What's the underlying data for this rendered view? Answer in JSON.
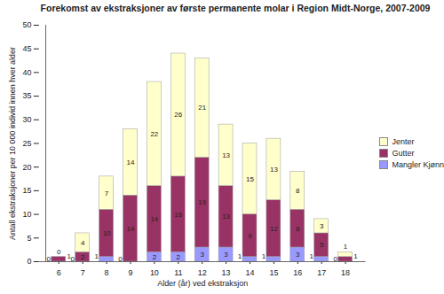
{
  "chart_data": {
    "type": "bar",
    "title": "Forekomst av ekstraksjoner av første permanente molar i Region Midt-Norge, 2007-2009",
    "x_label": "Alder (år) ved ekstraksjon",
    "y_label": "Antall ekstraksjoner per 10 000 individ innen hver alder",
    "categories": [
      6,
      7,
      8,
      9,
      10,
      11,
      12,
      13,
      14,
      15,
      16,
      17,
      18
    ],
    "series": [
      {
        "name": "Mangler Kjønn",
        "color": "#9999ff",
        "values": [
          0,
          0,
          1,
          0,
          2,
          2,
          3,
          3,
          1,
          1,
          3,
          1,
          0
        ]
      },
      {
        "name": "Gutter",
        "color": "#993366",
        "values": [
          1,
          2,
          10,
          14,
          14,
          16,
          19,
          13,
          9,
          12,
          8,
          5,
          1
        ]
      },
      {
        "name": "Jenter",
        "color": "#ffffcc",
        "values": [
          0,
          4,
          7,
          14,
          22,
          26,
          21,
          13,
          15,
          13,
          8,
          3,
          1
        ]
      }
    ],
    "stacked": true,
    "data_labels": true,
    "ylim": [
      0,
      50
    ],
    "yticks": [
      0,
      5,
      10,
      15,
      20,
      25,
      30,
      35,
      40,
      45,
      50
    ],
    "grid": false,
    "legend": "right"
  }
}
